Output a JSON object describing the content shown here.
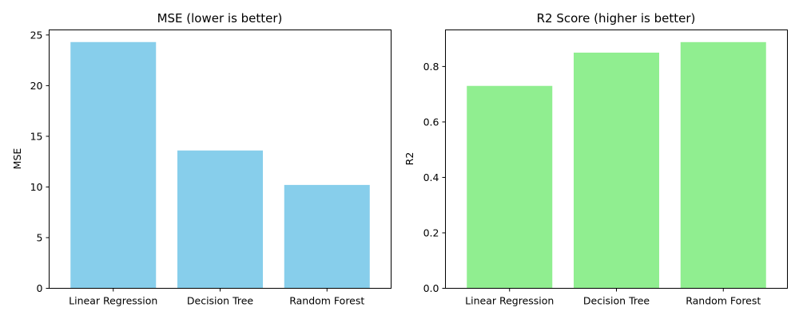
{
  "chart_data": [
    {
      "type": "bar",
      "title": "MSE (lower is better)",
      "xlabel": "",
      "ylabel": "MSE",
      "categories": [
        "Linear Regression",
        "Decision Tree",
        "Random Forest"
      ],
      "values": [
        24.3,
        13.6,
        10.2
      ],
      "ylim": [
        0,
        25.5
      ],
      "yticks": [
        0,
        5,
        10,
        15,
        20,
        25
      ],
      "ytick_labels": [
        "0",
        "5",
        "10",
        "15",
        "20",
        "25"
      ],
      "color": "#87ceeb",
      "grid": false
    },
    {
      "type": "bar",
      "title": "R2 Score (higher is better)",
      "xlabel": "",
      "ylabel": "R2",
      "categories": [
        "Linear Regression",
        "Decision Tree",
        "Random Forest"
      ],
      "values": [
        0.73,
        0.85,
        0.888
      ],
      "ylim": [
        0,
        0.932
      ],
      "yticks": [
        0,
        0.2,
        0.4,
        0.6,
        0.8
      ],
      "ytick_labels": [
        "0.0",
        "0.2",
        "0.4",
        "0.6",
        "0.8"
      ],
      "color": "#90ee90",
      "grid": false
    }
  ]
}
